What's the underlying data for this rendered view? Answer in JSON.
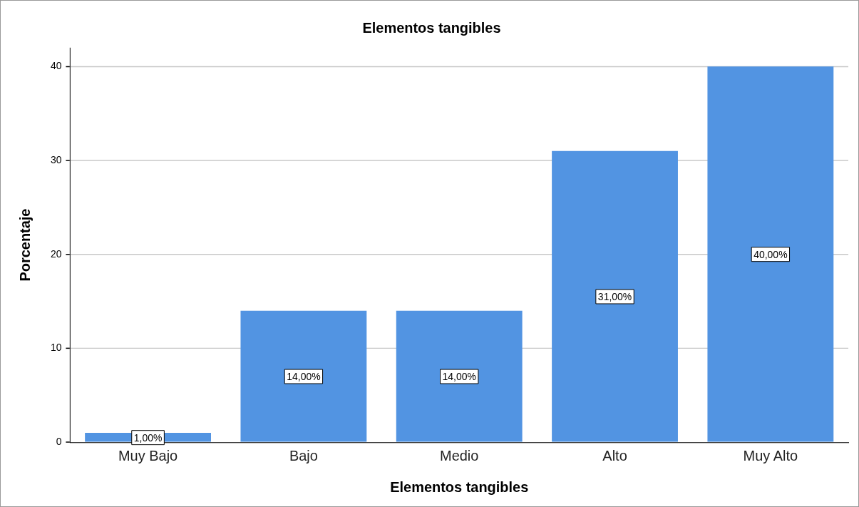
{
  "chart_data": {
    "type": "bar",
    "title": "Elementos tangibles",
    "xlabel": "Elementos tangibles",
    "ylabel": "Porcentaje",
    "categories": [
      "Muy Bajo",
      "Bajo",
      "Medio",
      "Alto",
      "Muy Alto"
    ],
    "values": [
      1,
      14,
      14,
      31,
      40
    ],
    "value_labels": [
      "1,00%",
      "14,00%",
      "14,00%",
      "31,00%",
      "40,00%"
    ],
    "color": "#5294e2",
    "ylim": [
      0,
      42
    ],
    "yticks": [
      0,
      10,
      20,
      30,
      40
    ],
    "grid": "y",
    "legend": false
  }
}
